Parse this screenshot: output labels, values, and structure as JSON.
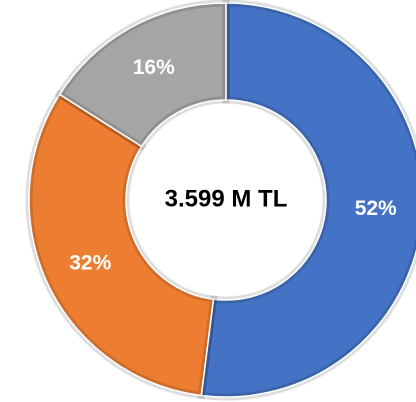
{
  "chart_data": {
    "type": "donut",
    "values": [
      52,
      32,
      16
    ],
    "value_labels": [
      "52%",
      "32%",
      "16%"
    ],
    "colors": [
      "#4472c4",
      "#ed7d31",
      "#a5a5a5"
    ],
    "center_label": "3.599 M TL"
  }
}
